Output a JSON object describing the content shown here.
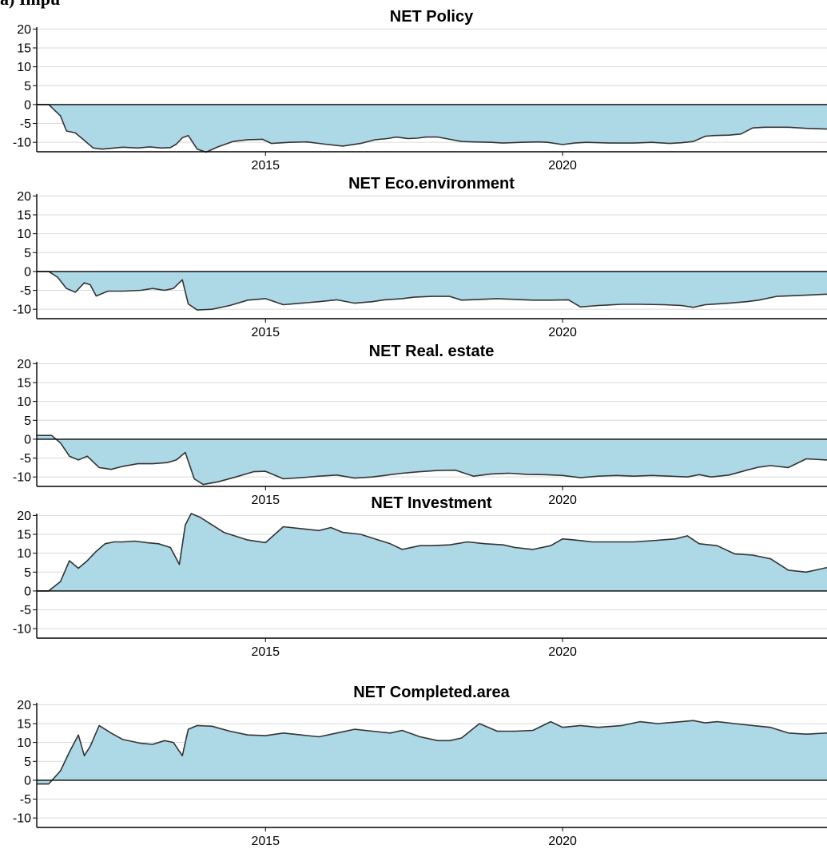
{
  "header_fragment": "a) Impu",
  "colors": {
    "fill": "#add8e6",
    "line": "#333333",
    "grid": "#d9d9d9",
    "zero": "#000000"
  },
  "chart_data": [
    {
      "type": "area",
      "title": "NET Policy",
      "ylim": [
        -12.5,
        20.5
      ],
      "yticks": [
        20,
        15,
        10,
        5,
        0,
        -5,
        -10
      ],
      "xlim": [
        2011.15,
        2024.45
      ],
      "xticks": [
        2015,
        2020
      ],
      "grid": true,
      "x": [
        2011.15,
        2011.35,
        2011.55,
        2011.65,
        2011.8,
        2011.95,
        2012.1,
        2012.25,
        2012.4,
        2012.6,
        2012.85,
        2013.05,
        2013.25,
        2013.4,
        2013.5,
        2013.6,
        2013.7,
        2013.85,
        2014.0,
        2014.2,
        2014.45,
        2014.7,
        2014.95,
        2015.1,
        2015.4,
        2015.7,
        2016.0,
        2016.3,
        2016.6,
        2016.85,
        2017.05,
        2017.2,
        2017.4,
        2017.55,
        2017.7,
        2017.9,
        2018.1,
        2018.3,
        2018.5,
        2018.8,
        2019.0,
        2019.3,
        2019.6,
        2019.75,
        2020.0,
        2020.2,
        2020.4,
        2020.8,
        2021.2,
        2021.5,
        2021.8,
        2022.0,
        2022.2,
        2022.4,
        2022.55,
        2022.8,
        2023.0,
        2023.2,
        2023.4,
        2023.8,
        2024.1,
        2024.45
      ],
      "values": [
        0,
        0,
        -3,
        -7,
        -7.5,
        -9.5,
        -11.5,
        -11.8,
        -11.6,
        -11.3,
        -11.5,
        -11.2,
        -11.5,
        -11.4,
        -10.5,
        -8.8,
        -8.2,
        -11.8,
        -12.6,
        -11.2,
        -9.8,
        -9.3,
        -9.2,
        -10.3,
        -10.0,
        -9.9,
        -10.5,
        -11.0,
        -10.3,
        -9.3,
        -9.0,
        -8.6,
        -9.0,
        -8.9,
        -8.6,
        -8.6,
        -9.2,
        -9.8,
        -9.9,
        -10.0,
        -10.2,
        -10.0,
        -9.9,
        -10.0,
        -10.6,
        -10.2,
        -10.0,
        -10.2,
        -10.2,
        -10.0,
        -10.3,
        -10.1,
        -9.8,
        -8.4,
        -8.2,
        -8.1,
        -7.8,
        -6.2,
        -6.0,
        -6.0,
        -6.3,
        -6.5
      ]
    },
    {
      "type": "area",
      "title": "NET Eco.environment",
      "ylim": [
        -12.5,
        20.5
      ],
      "yticks": [
        20,
        15,
        10,
        5,
        0,
        -5,
        -10
      ],
      "xlim": [
        2011.15,
        2024.45
      ],
      "xticks": [
        2015,
        2020
      ],
      "grid": true,
      "x": [
        2011.15,
        2011.35,
        2011.5,
        2011.65,
        2011.8,
        2011.95,
        2012.05,
        2012.15,
        2012.35,
        2012.6,
        2012.9,
        2013.1,
        2013.3,
        2013.45,
        2013.6,
        2013.7,
        2013.85,
        2014.1,
        2014.4,
        2014.7,
        2015.0,
        2015.3,
        2015.6,
        2015.9,
        2016.2,
        2016.5,
        2016.8,
        2017.0,
        2017.3,
        2017.5,
        2017.8,
        2018.1,
        2018.3,
        2018.6,
        2018.9,
        2019.2,
        2019.5,
        2019.8,
        2020.1,
        2020.3,
        2020.6,
        2021.0,
        2021.3,
        2021.7,
        2022.0,
        2022.2,
        2022.4,
        2022.6,
        2022.8,
        2023.1,
        2023.3,
        2023.6,
        2023.9,
        2024.2,
        2024.45
      ],
      "values": [
        0,
        0,
        -1.5,
        -4.5,
        -5.5,
        -3,
        -3.5,
        -6.5,
        -5.2,
        -5.2,
        -5.0,
        -4.5,
        -5.0,
        -4.5,
        -2.2,
        -8.6,
        -10.2,
        -10.0,
        -9.0,
        -7.6,
        -7.2,
        -8.8,
        -8.4,
        -8.0,
        -7.5,
        -8.4,
        -8.0,
        -7.5,
        -7.2,
        -6.8,
        -6.6,
        -6.6,
        -7.6,
        -7.4,
        -7.2,
        -7.4,
        -7.6,
        -7.6,
        -7.5,
        -9.4,
        -9.0,
        -8.7,
        -8.7,
        -8.8,
        -9.0,
        -9.5,
        -8.8,
        -8.6,
        -8.4,
        -8.0,
        -7.6,
        -6.6,
        -6.4,
        -6.2,
        -6.0
      ]
    },
    {
      "type": "area",
      "title": "NET Real. estate",
      "ylim": [
        -12.5,
        20.5
      ],
      "yticks": [
        20,
        15,
        10,
        5,
        0,
        -5,
        -10
      ],
      "xlim": [
        2011.15,
        2024.45
      ],
      "xticks": [
        2015,
        2020
      ],
      "grid": true,
      "x": [
        2011.15,
        2011.4,
        2011.55,
        2011.7,
        2011.85,
        2012.0,
        2012.2,
        2012.4,
        2012.6,
        2012.85,
        2013.1,
        2013.35,
        2013.5,
        2013.65,
        2013.8,
        2013.95,
        2014.2,
        2014.5,
        2014.8,
        2015.0,
        2015.3,
        2015.6,
        2015.9,
        2016.2,
        2016.5,
        2016.8,
        2017.0,
        2017.3,
        2017.6,
        2017.9,
        2018.2,
        2018.5,
        2018.8,
        2019.1,
        2019.4,
        2019.7,
        2020.0,
        2020.3,
        2020.6,
        2020.9,
        2021.2,
        2021.5,
        2021.8,
        2022.1,
        2022.3,
        2022.5,
        2022.8,
        2023.1,
        2023.3,
        2023.5,
        2023.8,
        2024.1,
        2024.45
      ],
      "values": [
        1,
        1,
        -1,
        -4.5,
        -5.5,
        -4.5,
        -7.5,
        -8.0,
        -7.2,
        -6.5,
        -6.5,
        -6.2,
        -5.5,
        -3.5,
        -10.5,
        -12.0,
        -11.3,
        -10.0,
        -8.6,
        -8.5,
        -10.5,
        -10.2,
        -9.8,
        -9.5,
        -10.3,
        -10.0,
        -9.6,
        -9.0,
        -8.6,
        -8.3,
        -8.2,
        -9.8,
        -9.2,
        -9.0,
        -9.3,
        -9.4,
        -9.6,
        -10.2,
        -9.8,
        -9.6,
        -9.8,
        -9.6,
        -9.8,
        -10.0,
        -9.4,
        -10.0,
        -9.5,
        -8.2,
        -7.4,
        -7.0,
        -7.5,
        -5.2,
        -5.5
      ]
    },
    {
      "type": "area",
      "title": "NET Investment",
      "ylim": [
        -12.5,
        20.5
      ],
      "yticks": [
        20,
        15,
        10,
        5,
        0,
        -5,
        -10
      ],
      "xlim": [
        2011.15,
        2024.45
      ],
      "xticks": [
        2015,
        2020
      ],
      "grid": true,
      "x": [
        2011.15,
        2011.35,
        2011.55,
        2011.7,
        2011.85,
        2012.0,
        2012.15,
        2012.3,
        2012.45,
        2012.6,
        2012.8,
        2013.0,
        2013.2,
        2013.4,
        2013.55,
        2013.65,
        2013.75,
        2013.9,
        2014.1,
        2014.3,
        2014.5,
        2014.7,
        2015.0,
        2015.3,
        2015.6,
        2015.9,
        2016.1,
        2016.3,
        2016.6,
        2016.9,
        2017.1,
        2017.3,
        2017.6,
        2017.8,
        2018.1,
        2018.4,
        2018.7,
        2019.0,
        2019.2,
        2019.5,
        2019.8,
        2020.0,
        2020.2,
        2020.5,
        2020.8,
        2021.2,
        2021.5,
        2021.9,
        2022.1,
        2022.3,
        2022.6,
        2022.9,
        2023.2,
        2023.5,
        2023.8,
        2024.1,
        2024.45
      ],
      "values": [
        0,
        0,
        2.5,
        8.0,
        6.0,
        8.0,
        10.5,
        12.5,
        13.0,
        13.0,
        13.2,
        12.8,
        12.5,
        11.5,
        7.0,
        17.5,
        20.5,
        19.5,
        17.5,
        15.5,
        14.5,
        13.5,
        12.8,
        17.0,
        16.5,
        16.0,
        16.8,
        15.5,
        15.0,
        13.5,
        12.5,
        11.0,
        12.0,
        12.0,
        12.2,
        13.0,
        12.5,
        12.2,
        11.5,
        11.0,
        12.0,
        13.8,
        13.5,
        13.0,
        13.0,
        13.0,
        13.3,
        13.8,
        14.6,
        12.5,
        12.0,
        9.8,
        9.5,
        8.5,
        5.5,
        5.0,
        6.2
      ]
    },
    {
      "type": "area",
      "title": "NET Completed.area",
      "ylim": [
        -12.5,
        20.5
      ],
      "yticks": [
        20,
        15,
        10,
        5,
        0,
        -5,
        -10
      ],
      "xlim": [
        2011.15,
        2024.45
      ],
      "xticks": [
        2015,
        2020
      ],
      "grid": true,
      "x": [
        2011.15,
        2011.35,
        2011.55,
        2011.7,
        2011.85,
        2011.95,
        2012.05,
        2012.2,
        2012.4,
        2012.6,
        2012.9,
        2013.1,
        2013.3,
        2013.45,
        2013.6,
        2013.7,
        2013.85,
        2014.1,
        2014.4,
        2014.7,
        2015.0,
        2015.3,
        2015.6,
        2015.9,
        2016.2,
        2016.5,
        2016.8,
        2017.1,
        2017.3,
        2017.6,
        2017.9,
        2018.1,
        2018.3,
        2018.6,
        2018.9,
        2019.2,
        2019.5,
        2019.8,
        2020.0,
        2020.3,
        2020.6,
        2021.0,
        2021.3,
        2021.6,
        2022.0,
        2022.2,
        2022.4,
        2022.6,
        2022.9,
        2023.2,
        2023.5,
        2023.8,
        2024.1,
        2024.45
      ],
      "values": [
        -1,
        -1,
        2.5,
        7.5,
        12.0,
        6.5,
        9.0,
        14.5,
        12.5,
        10.8,
        9.8,
        9.5,
        10.5,
        10.0,
        6.5,
        13.5,
        14.5,
        14.3,
        13.0,
        12.0,
        11.8,
        12.5,
        12.0,
        11.5,
        12.5,
        13.5,
        13.0,
        12.5,
        13.2,
        11.5,
        10.5,
        10.5,
        11.2,
        15.0,
        13.0,
        13.0,
        13.2,
        15.5,
        14.0,
        14.5,
        14.0,
        14.5,
        15.5,
        15.0,
        15.5,
        15.8,
        15.2,
        15.5,
        15.0,
        14.5,
        14.0,
        12.5,
        12.2,
        12.5
      ]
    }
  ]
}
